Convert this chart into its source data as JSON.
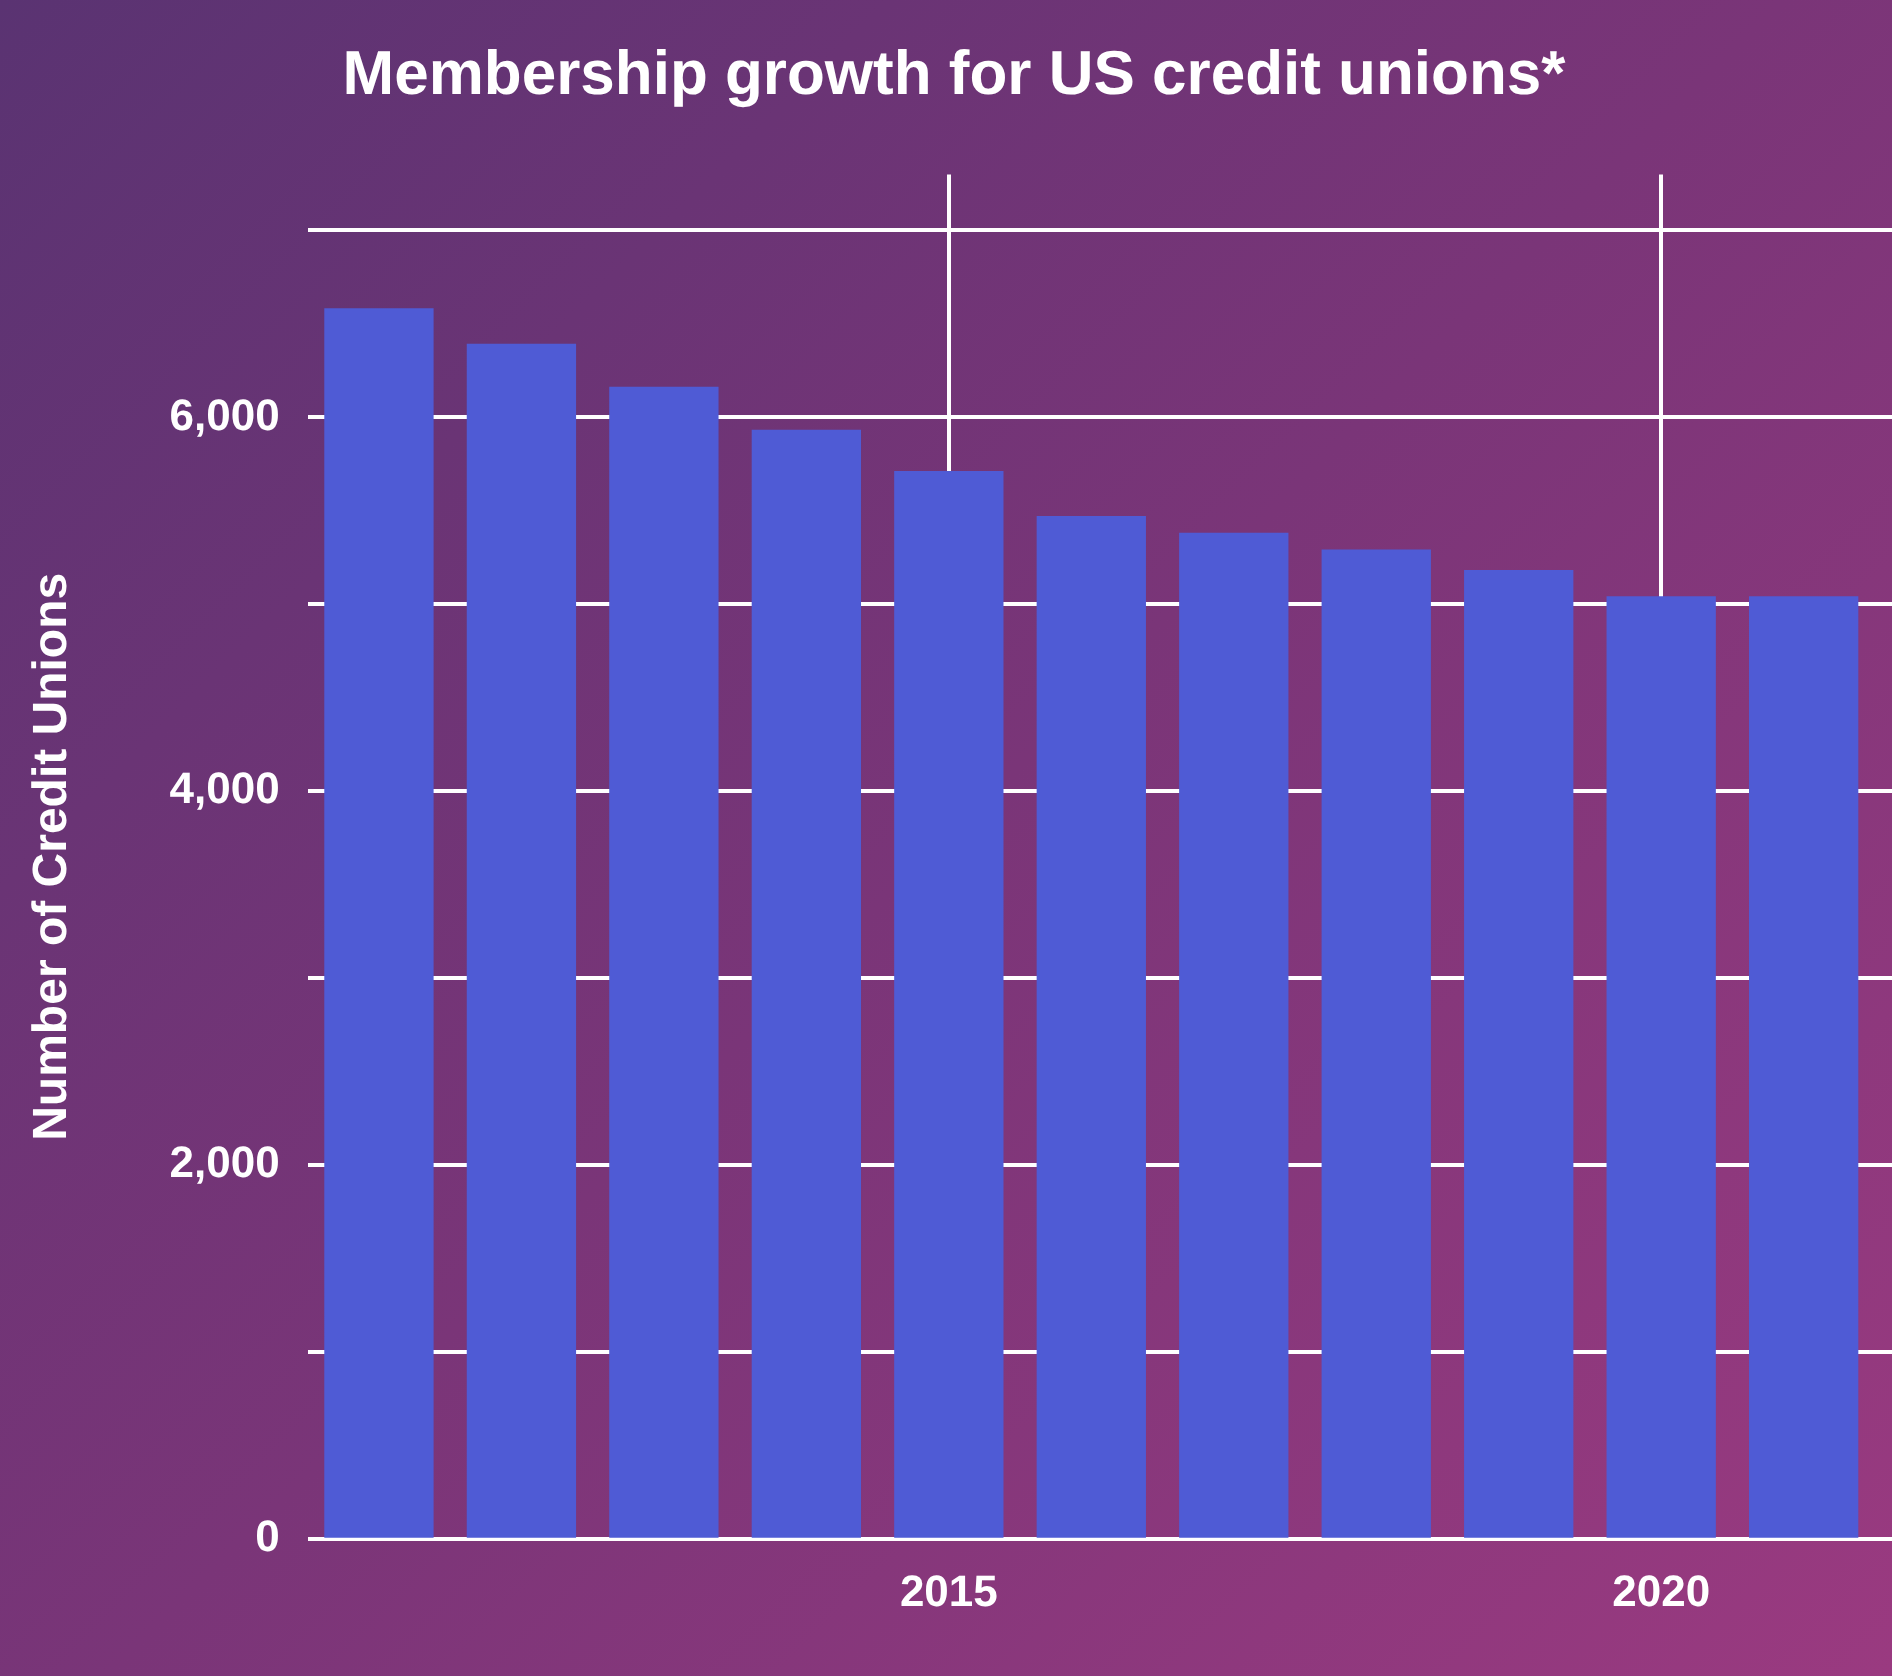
{
  "chart_data": {
    "type": "bar",
    "title": "Membership growth for US credit unions*",
    "ylabel": "Number of Credit Unions",
    "x": [
      2011,
      2012,
      2013,
      2014,
      2015,
      2016,
      2017,
      2018,
      2019,
      2020,
      2021
    ],
    "values": [
      6580,
      6390,
      6160,
      5930,
      5710,
      5470,
      5380,
      5290,
      5180,
      5040,
      5040
    ],
    "color": "#4f5bd5",
    "xlim": [
      2010.5,
      2021.62
    ],
    "xticks": [
      2015,
      2020
    ],
    "ylim": [
      0,
      7300
    ],
    "yticks": [
      0,
      {
        "value": 1000,
        "label": null
      },
      {
        "value": 2000,
        "label": "2,000"
      },
      {
        "value": 3000,
        "label": null
      },
      {
        "value": 4000,
        "label": "4,000"
      },
      {
        "value": 5000,
        "label": null
      },
      {
        "value": 6000,
        "label": "6,000"
      },
      {
        "value": 7000,
        "label": null
      }
    ],
    "grid": true,
    "legend": false
  }
}
